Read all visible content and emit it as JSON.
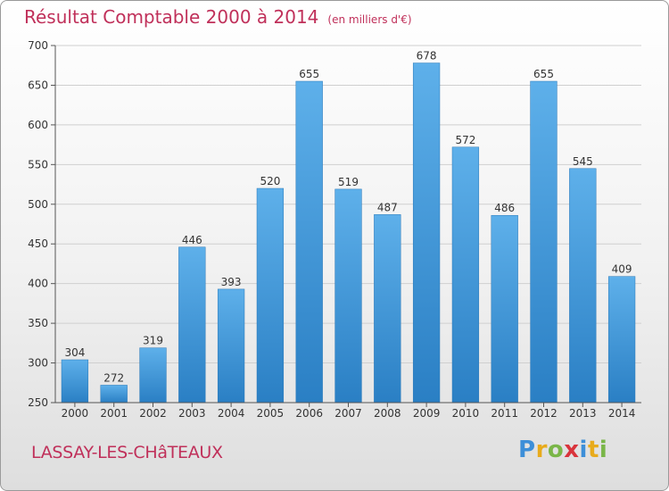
{
  "header": {
    "title": "Résultat Comptable 2000 à 2014",
    "unit": "(en milliers d'€)"
  },
  "footer": {
    "town": "LASSAY-LES-CHâTEAUX",
    "brand": "Proxiti"
  },
  "colors": {
    "title": "#c0305a",
    "bar_top": "#5eb0ea",
    "bar_bottom": "#2a7fc4",
    "grid": "#cfcfcf"
  },
  "chart_data": {
    "type": "bar",
    "title": "Résultat Comptable 2000 à 2014",
    "xlabel": "",
    "ylabel": "",
    "ylim": [
      250,
      700
    ],
    "yticks": [
      250,
      300,
      350,
      400,
      450,
      500,
      550,
      600,
      650,
      700
    ],
    "categories": [
      "2000",
      "2001",
      "2002",
      "2003",
      "2004",
      "2005",
      "2006",
      "2007",
      "2008",
      "2009",
      "2010",
      "2011",
      "2012",
      "2013",
      "2014"
    ],
    "values": [
      304,
      272,
      319,
      446,
      393,
      520,
      655,
      519,
      487,
      678,
      572,
      486,
      655,
      545,
      409
    ]
  }
}
